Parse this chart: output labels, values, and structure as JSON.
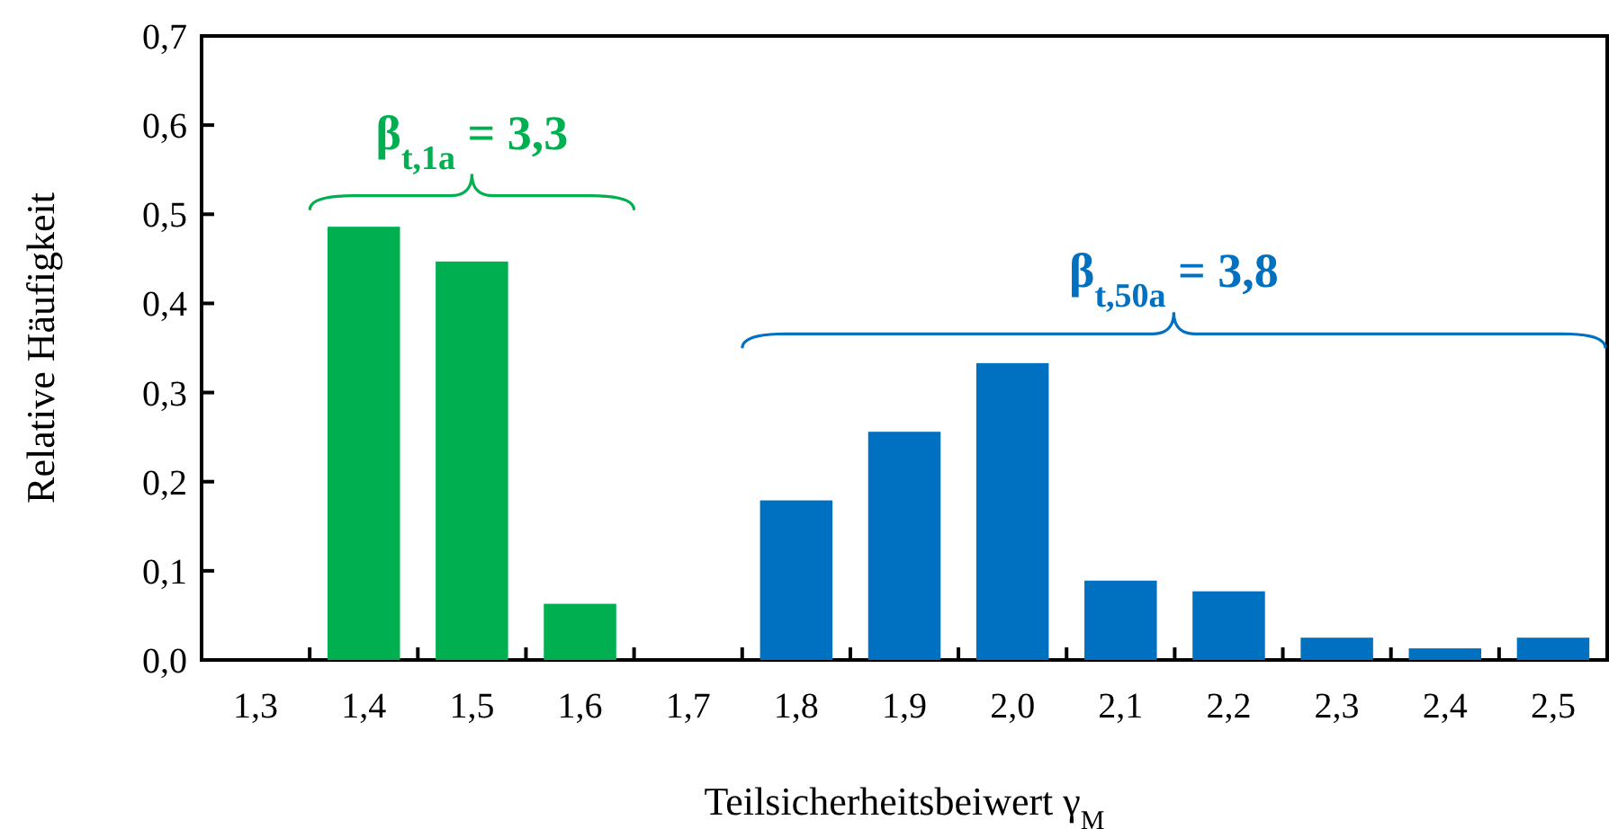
{
  "chart_data": {
    "type": "bar",
    "categories": [
      "1,3",
      "1,4",
      "1,5",
      "1,6",
      "1,7",
      "1,8",
      "1,9",
      "2,0",
      "2,1",
      "2,2",
      "2,3",
      "2,4",
      "2,5"
    ],
    "values": [
      null,
      0.486,
      0.447,
      0.063,
      null,
      0.179,
      0.256,
      0.333,
      0.089,
      0.077,
      0.025,
      0.013,
      0.025
    ],
    "colors": [
      null,
      "#00b050",
      "#00b050",
      "#00b050",
      null,
      "#0070c0",
      "#0070c0",
      "#0070c0",
      "#0070c0",
      "#0070c0",
      "#0070c0",
      "#0070c0",
      "#0070c0"
    ],
    "xlabel": "Teilsicherheitsbeiwert γ$_{M}$",
    "ylabel": "Relative Häufigkeit",
    "ylim": [
      0,
      0.7
    ],
    "yticks": [
      {
        "value": 0,
        "label": "0,0"
      },
      {
        "value": 0.1,
        "label": "0,1"
      },
      {
        "value": 0.2,
        "label": "0,2"
      },
      {
        "value": 0.3,
        "label": "0,3"
      },
      {
        "value": 0.4,
        "label": "0,4"
      },
      {
        "value": 0.5,
        "label": "0,5"
      },
      {
        "value": 0.6,
        "label": "0,6"
      },
      {
        "value": 0.7,
        "label": "0,7"
      }
    ],
    "annotations": [
      "β$_{t,1a}$ = 3,3",
      "β$_{t,50a}$ = 3,8"
    ],
    "grid": false
  }
}
